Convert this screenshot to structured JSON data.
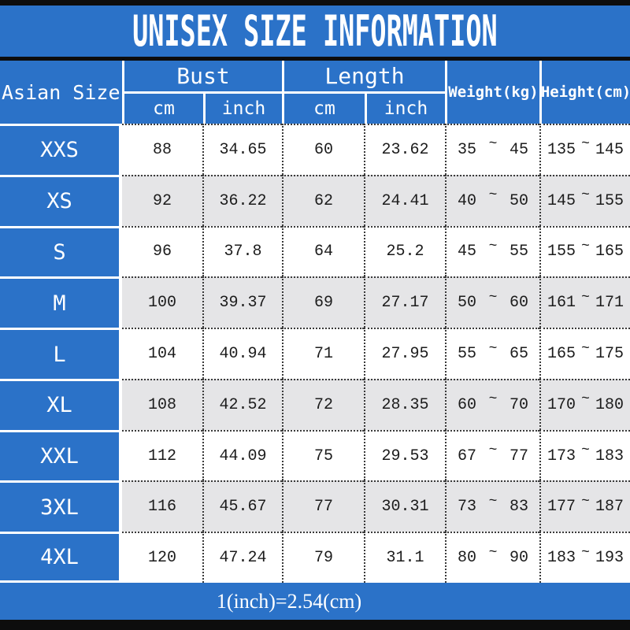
{
  "title": "UNISEX SIZE INFORMATION",
  "footer": "1(inch)=2.54(cm)",
  "tilde": "~",
  "colors": {
    "blue": "#2B72C8",
    "stripe_gray": "#E5E5E7",
    "border_black": "#0D0D0D",
    "text_dark": "#1C1C1C",
    "text_light": "#FFFFFF"
  },
  "table": {
    "size_header": "Asian Size",
    "bust_label": "Bust",
    "length_label": "Length",
    "cm_label": "cm",
    "inch_label": "inch",
    "weight_label": "Weight(kg)",
    "height_label": "Height(cm)",
    "rows": [
      {
        "size": "XXS",
        "cells": [
          "88",
          "34.65",
          "60",
          "23.62"
        ],
        "weight": [
          "35",
          "45"
        ],
        "height": [
          "135",
          "145"
        ]
      },
      {
        "size": "XS",
        "cells": [
          "92",
          "36.22",
          "62",
          "24.41"
        ],
        "weight": [
          "40",
          "50"
        ],
        "height": [
          "145",
          "155"
        ]
      },
      {
        "size": "S",
        "cells": [
          "96",
          "37.8",
          "64",
          "25.2"
        ],
        "weight": [
          "45",
          "55"
        ],
        "height": [
          "155",
          "165"
        ]
      },
      {
        "size": "M",
        "cells": [
          "100",
          "39.37",
          "69",
          "27.17"
        ],
        "weight": [
          "50",
          "60"
        ],
        "height": [
          "161",
          "171"
        ]
      },
      {
        "size": "L",
        "cells": [
          "104",
          "40.94",
          "71",
          "27.95"
        ],
        "weight": [
          "55",
          "65"
        ],
        "height": [
          "165",
          "175"
        ]
      },
      {
        "size": "XL",
        "cells": [
          "108",
          "42.52",
          "72",
          "28.35"
        ],
        "weight": [
          "60",
          "70"
        ],
        "height": [
          "170",
          "180"
        ]
      },
      {
        "size": "XXL",
        "cells": [
          "112",
          "44.09",
          "75",
          "29.53"
        ],
        "weight": [
          "67",
          "77"
        ],
        "height": [
          "173",
          "183"
        ]
      },
      {
        "size": "3XL",
        "cells": [
          "116",
          "45.67",
          "77",
          "30.31"
        ],
        "weight": [
          "73",
          "83"
        ],
        "height": [
          "177",
          "187"
        ]
      },
      {
        "size": "4XL",
        "cells": [
          "120",
          "47.24",
          "79",
          "31.1"
        ],
        "weight": [
          "80",
          "90"
        ],
        "height": [
          "183",
          "193"
        ]
      }
    ]
  },
  "chart_data": {
    "type": "table",
    "title": "UNISEX SIZE INFORMATION",
    "columns": [
      "Asian Size",
      "Bust cm",
      "Bust inch",
      "Length cm",
      "Length inch",
      "Weight(kg)",
      "Height(cm)"
    ],
    "rows": [
      [
        "XXS",
        "88",
        "34.65",
        "60",
        "23.62",
        "35~45",
        "135~145"
      ],
      [
        "XS",
        "92",
        "36.22",
        "62",
        "24.41",
        "40~50",
        "145~155"
      ],
      [
        "S",
        "96",
        "37.8",
        "64",
        "25.2",
        "45~55",
        "155~165"
      ],
      [
        "M",
        "100",
        "39.37",
        "69",
        "27.17",
        "50~60",
        "161~171"
      ],
      [
        "L",
        "104",
        "40.94",
        "71",
        "27.95",
        "55~65",
        "165~175"
      ],
      [
        "XL",
        "108",
        "42.52",
        "72",
        "28.35",
        "60~70",
        "170~180"
      ],
      [
        "XXL",
        "112",
        "44.09",
        "75",
        "29.53",
        "67~77",
        "173~183"
      ],
      [
        "3XL",
        "116",
        "45.67",
        "77",
        "30.31",
        "73~83",
        "177~187"
      ],
      [
        "4XL",
        "120",
        "47.24",
        "79",
        "31.1",
        "80~90",
        "183~193"
      ]
    ],
    "footnote": "1(inch)=2.54(cm)"
  }
}
